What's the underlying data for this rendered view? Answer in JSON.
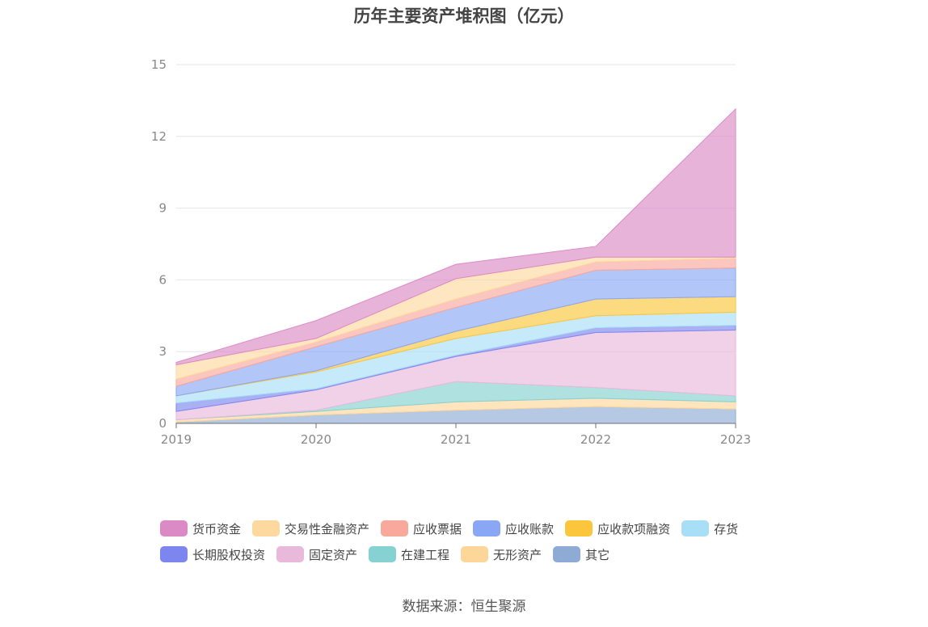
{
  "chart_data": {
    "type": "area",
    "title": "历年主要资产堆积图（亿元）",
    "x": [
      "2019",
      "2020",
      "2021",
      "2022",
      "2023"
    ],
    "ylim": [
      0,
      15
    ],
    "yticks": [
      "0",
      "3",
      "6",
      "9",
      "12",
      "15"
    ],
    "grid": true,
    "stacked": true,
    "legend_position": "bottom",
    "series": [
      {
        "name": "其它",
        "color": "#8eabd6",
        "values": [
          0.05,
          0.35,
          0.55,
          0.7,
          0.6
        ]
      },
      {
        "name": "无形资产",
        "color": "#fdd79a",
        "values": [
          0.1,
          0.15,
          0.35,
          0.35,
          0.3
        ]
      },
      {
        "name": "在建工程",
        "color": "#86d1d1",
        "values": [
          0.0,
          0.05,
          0.85,
          0.45,
          0.25
        ]
      },
      {
        "name": "固定资产",
        "color": "#e9b9dc",
        "values": [
          0.35,
          0.85,
          1.05,
          2.3,
          2.75
        ]
      },
      {
        "name": "长期股权投资",
        "color": "#7d86ee",
        "values": [
          0.35,
          0.05,
          0.05,
          0.2,
          0.2
        ]
      },
      {
        "name": "存货",
        "color": "#a9def7",
        "values": [
          0.3,
          0.7,
          0.7,
          0.5,
          0.55
        ]
      },
      {
        "name": "应收款项融资",
        "color": "#fbc63c",
        "values": [
          0.0,
          0.05,
          0.3,
          0.7,
          0.65
        ]
      },
      {
        "name": "应收账款",
        "color": "#8aa7f5",
        "values": [
          0.4,
          1.0,
          1.0,
          1.2,
          1.2
        ]
      },
      {
        "name": "应收票据",
        "color": "#f9a89c",
        "values": [
          0.3,
          0.2,
          0.35,
          0.35,
          0.4
        ]
      },
      {
        "name": "交易性金融资产",
        "color": "#fed99f",
        "values": [
          0.6,
          0.15,
          0.85,
          0.2,
          0.05
        ]
      },
      {
        "name": "货币资金",
        "color": "#dc8ac5",
        "values": [
          0.1,
          0.75,
          0.6,
          0.45,
          6.2
        ]
      }
    ]
  },
  "legend": {
    "row1": [
      {
        "label": "货币资金",
        "color": "#dc8ac5"
      },
      {
        "label": "交易性金融资产",
        "color": "#fed99f"
      },
      {
        "label": "应收票据",
        "color": "#f9a89c"
      },
      {
        "label": "应收账款",
        "color": "#8aa7f5"
      },
      {
        "label": "应收款项融资",
        "color": "#fbc63c"
      },
      {
        "label": "存货",
        "color": "#a9def7"
      }
    ],
    "row2": [
      {
        "label": "长期股权投资",
        "color": "#7d86ee"
      },
      {
        "label": "固定资产",
        "color": "#e9b9dc"
      },
      {
        "label": "在建工程",
        "color": "#86d1d1"
      },
      {
        "label": "无形资产",
        "color": "#fdd79a"
      },
      {
        "label": "其它",
        "color": "#8eabd6"
      }
    ]
  },
  "source_note": "数据来源：恒生聚源"
}
